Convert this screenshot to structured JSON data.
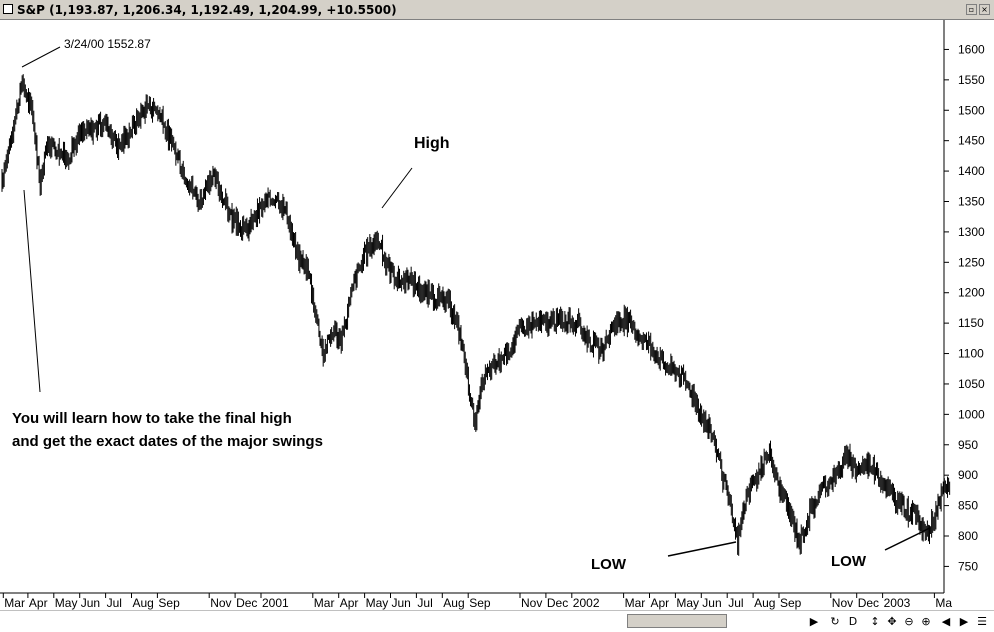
{
  "window": {
    "title": "S&P (1,193.87, 1,206.34, 1,192.49, 1,204.99, +10.5500)",
    "restore_glyph": "▫",
    "close_glyph": "×"
  },
  "scrollbar": {
    "buttons": [
      {
        "name": "scroll-right-arrow-icon",
        "glyph": "▶"
      },
      {
        "name": "refresh-icon",
        "glyph": "↻"
      },
      {
        "name": "d-toggle-button",
        "glyph": "D"
      },
      {
        "name": "vertical-resize-icon",
        "glyph": "↕"
      },
      {
        "name": "pan-icon",
        "glyph": "✥"
      },
      {
        "name": "zoom-out-icon",
        "glyph": "⊖"
      },
      {
        "name": "zoom-in-icon",
        "glyph": "⊕"
      },
      {
        "name": "scroll-left-icon",
        "glyph": "◀"
      },
      {
        "name": "scroll-right-icon",
        "glyph": "▶"
      },
      {
        "name": "menu-icon",
        "glyph": "☰"
      }
    ]
  },
  "chart_data": {
    "type": "bar",
    "style": "OHLC daily price bars",
    "series_name": "S&P",
    "y_axis_side": "right",
    "ylim": [
      700,
      1640
    ],
    "yticks": [
      750,
      800,
      850,
      900,
      950,
      1000,
      1050,
      1100,
      1150,
      1200,
      1250,
      1300,
      1350,
      1400,
      1450,
      1500,
      1550,
      1600
    ],
    "xlim_months": [
      0,
      36.6
    ],
    "x_tick_labels": [
      {
        "label": "Mar",
        "m": 0.05
      },
      {
        "label": "Apr",
        "m": 1
      },
      {
        "label": "May",
        "m": 2
      },
      {
        "label": "Jun",
        "m": 3
      },
      {
        "label": "Jul",
        "m": 4
      },
      {
        "label": "Aug",
        "m": 5
      },
      {
        "label": "Sep",
        "m": 6
      },
      {
        "label": "Nov",
        "m": 8
      },
      {
        "label": "Dec",
        "m": 9
      },
      {
        "label": "2001",
        "m": 10
      },
      {
        "label": "Mar",
        "m": 12
      },
      {
        "label": "Apr",
        "m": 13
      },
      {
        "label": "May",
        "m": 14
      },
      {
        "label": "Jun",
        "m": 15
      },
      {
        "label": "Jul",
        "m": 16
      },
      {
        "label": "Aug",
        "m": 17
      },
      {
        "label": "Sep",
        "m": 18
      },
      {
        "label": "Nov",
        "m": 20
      },
      {
        "label": "Dec",
        "m": 21
      },
      {
        "label": "2002",
        "m": 22
      },
      {
        "label": "Mar",
        "m": 24
      },
      {
        "label": "Apr",
        "m": 25
      },
      {
        "label": "May",
        "m": 26
      },
      {
        "label": "Jun",
        "m": 27
      },
      {
        "label": "Jul",
        "m": 28
      },
      {
        "label": "Aug",
        "m": 29
      },
      {
        "label": "Sep",
        "m": 30
      },
      {
        "label": "Nov",
        "m": 32
      },
      {
        "label": "Dec",
        "m": 33
      },
      {
        "label": "2003",
        "m": 34
      },
      {
        "label": "Ma",
        "m": 36
      }
    ],
    "key_points": [
      {
        "m": 0.0,
        "v": 1380
      },
      {
        "m": 0.3,
        "v": 1450
      },
      {
        "m": 0.8,
        "v": 1545
      },
      {
        "m": 1.2,
        "v": 1490
      },
      {
        "m": 1.45,
        "v": 1380
      },
      {
        "m": 1.8,
        "v": 1450
      },
      {
        "m": 2.5,
        "v": 1420
      },
      {
        "m": 3.0,
        "v": 1460
      },
      {
        "m": 3.5,
        "v": 1470
      },
      {
        "m": 4.0,
        "v": 1480
      },
      {
        "m": 4.5,
        "v": 1440
      },
      {
        "m": 5.0,
        "v": 1470
      },
      {
        "m": 5.6,
        "v": 1510
      },
      {
        "m": 6.0,
        "v": 1500
      },
      {
        "m": 6.5,
        "v": 1450
      },
      {
        "m": 7.0,
        "v": 1400
      },
      {
        "m": 7.6,
        "v": 1350
      },
      {
        "m": 8.2,
        "v": 1390
      },
      {
        "m": 8.9,
        "v": 1320
      },
      {
        "m": 9.4,
        "v": 1300
      },
      {
        "m": 10.0,
        "v": 1340
      },
      {
        "m": 10.6,
        "v": 1360
      },
      {
        "m": 11.0,
        "v": 1330
      },
      {
        "m": 11.4,
        "v": 1260
      },
      {
        "m": 11.8,
        "v": 1240
      },
      {
        "m": 12.1,
        "v": 1170
      },
      {
        "m": 12.4,
        "v": 1100
      },
      {
        "m": 12.8,
        "v": 1140
      },
      {
        "m": 13.1,
        "v": 1120
      },
      {
        "m": 13.6,
        "v": 1220
      },
      {
        "m": 14.1,
        "v": 1270
      },
      {
        "m": 14.5,
        "v": 1290
      },
      {
        "m": 14.8,
        "v": 1250
      },
      {
        "m": 15.3,
        "v": 1220
      },
      {
        "m": 15.8,
        "v": 1220
      },
      {
        "m": 16.3,
        "v": 1200
      },
      {
        "m": 16.8,
        "v": 1190
      },
      {
        "m": 17.3,
        "v": 1180
      },
      {
        "m": 17.7,
        "v": 1130
      },
      {
        "m": 18.05,
        "v": 1040
      },
      {
        "m": 18.25,
        "v": 980
      },
      {
        "m": 18.6,
        "v": 1060
      },
      {
        "m": 19.0,
        "v": 1080
      },
      {
        "m": 19.5,
        "v": 1100
      },
      {
        "m": 20.0,
        "v": 1140
      },
      {
        "m": 20.5,
        "v": 1150
      },
      {
        "m": 21.0,
        "v": 1150
      },
      {
        "m": 21.6,
        "v": 1155
      },
      {
        "m": 22.2,
        "v": 1150
      },
      {
        "m": 22.7,
        "v": 1120
      },
      {
        "m": 23.2,
        "v": 1100
      },
      {
        "m": 23.6,
        "v": 1150
      },
      {
        "m": 24.1,
        "v": 1155
      },
      {
        "m": 24.6,
        "v": 1130
      },
      {
        "m": 25.1,
        "v": 1110
      },
      {
        "m": 25.6,
        "v": 1080
      },
      {
        "m": 26.1,
        "v": 1070
      },
      {
        "m": 26.6,
        "v": 1040
      },
      {
        "m": 27.1,
        "v": 990
      },
      {
        "m": 27.5,
        "v": 960
      },
      {
        "m": 27.8,
        "v": 900
      },
      {
        "m": 28.1,
        "v": 850
      },
      {
        "m": 28.4,
        "v": 790
      },
      {
        "m": 28.7,
        "v": 860
      },
      {
        "m": 29.2,
        "v": 900
      },
      {
        "m": 29.6,
        "v": 940
      },
      {
        "m": 30.0,
        "v": 880
      },
      {
        "m": 30.4,
        "v": 840
      },
      {
        "m": 30.8,
        "v": 790
      },
      {
        "m": 31.2,
        "v": 840
      },
      {
        "m": 31.7,
        "v": 880
      },
      {
        "m": 32.2,
        "v": 900
      },
      {
        "m": 32.6,
        "v": 930
      },
      {
        "m": 33.0,
        "v": 910
      },
      {
        "m": 33.5,
        "v": 920
      },
      {
        "m": 34.0,
        "v": 890
      },
      {
        "m": 34.5,
        "v": 860
      },
      {
        "m": 35.0,
        "v": 840
      },
      {
        "m": 35.4,
        "v": 830
      },
      {
        "m": 35.7,
        "v": 800
      },
      {
        "m": 36.0,
        "v": 830
      },
      {
        "m": 36.3,
        "v": 870
      },
      {
        "m": 36.55,
        "v": 880
      }
    ],
    "annotations": [
      {
        "id": "peak",
        "text": "3/24/00 1552.87",
        "m": 0.75,
        "v": 1552.87,
        "bold": false
      },
      {
        "id": "high",
        "text": "High",
        "m": 14.2,
        "v": 1318,
        "bold": true
      },
      {
        "id": "low1",
        "text": "LOW",
        "m": 28.45,
        "v": 775,
        "bold": true
      },
      {
        "id": "low2",
        "text": "LOW",
        "m": 35.75,
        "v": 790,
        "bold": true
      },
      {
        "id": "note_line1",
        "text": "You will learn how to take the final high",
        "bold": true
      },
      {
        "id": "note_line2",
        "text": "and get the exact dates of the major swings",
        "bold": true
      }
    ]
  }
}
